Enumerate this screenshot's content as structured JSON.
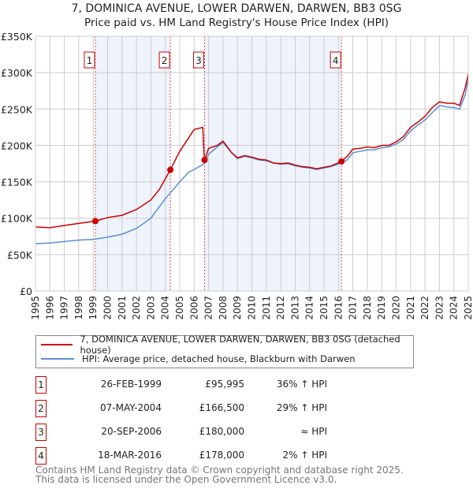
{
  "title": "7, DOMINICA AVENUE, LOWER DARWEN, DARWEN, BB3 0SG",
  "subtitle": "Price paid vs. HM Land Registry's House Price Index (HPI)",
  "chart_data": {
    "type": "line",
    "xlim": [
      1995,
      2025
    ],
    "ylim": [
      0,
      350000
    ],
    "yticks": [
      0,
      50000,
      100000,
      150000,
      200000,
      250000,
      300000,
      350000
    ],
    "ytick_labels": [
      "£0",
      "£50K",
      "£100K",
      "£150K",
      "£200K",
      "£250K",
      "£300K",
      "£350K"
    ],
    "xtick_labels": [
      "1995",
      "1996",
      "1997",
      "1998",
      "1999",
      "2000",
      "2001",
      "2002",
      "2003",
      "2004",
      "2005",
      "2006",
      "2007",
      "2008",
      "2009",
      "2010",
      "2011",
      "2012",
      "2013",
      "2014",
      "2015",
      "2016",
      "2017",
      "2018",
      "2019",
      "2020",
      "2021",
      "2022",
      "2023",
      "2024",
      "2025"
    ],
    "grid": true,
    "shaded_ranges": [
      [
        1999.15,
        2004.35
      ],
      [
        2006.72,
        2016.21
      ]
    ],
    "series": [
      {
        "name": "7, DOMINICA AVENUE, LOWER DARWEN, DARWEN, BB3 0SG (detached house)",
        "color": "#cc0000",
        "x": [
          1995,
          1996,
          1997,
          1998,
          1999.15,
          2000,
          2001,
          2002,
          2003,
          2003.6,
          2004.35,
          2005,
          2005.6,
          2006,
          2006.6,
          2006.68,
          2006.72,
          2007,
          2007.6,
          2008,
          2008.6,
          2009,
          2009.5,
          2010,
          2010.5,
          2011,
          2011.5,
          2012,
          2012.5,
          2013,
          2013.5,
          2014,
          2014.5,
          2015,
          2015.5,
          2016.21,
          2016.6,
          2017,
          2017.5,
          2018,
          2018.5,
          2019,
          2019.5,
          2020,
          2020.5,
          2021,
          2021.5,
          2022,
          2022.5,
          2023,
          2023.5,
          2024,
          2024.4,
          2024.8,
          2025
        ],
        "y": [
          88000,
          87000,
          90000,
          93000,
          95995,
          101000,
          104000,
          112000,
          125000,
          140000,
          166500,
          192000,
          210000,
          222000,
          225000,
          190000,
          180000,
          196000,
          200000,
          206000,
          190000,
          183000,
          186000,
          184000,
          181000,
          180000,
          176000,
          175000,
          176000,
          173000,
          171000,
          170000,
          168000,
          170000,
          172000,
          178000,
          185000,
          195000,
          196000,
          198000,
          197000,
          200000,
          200000,
          205000,
          212000,
          225000,
          232000,
          240000,
          252000,
          260000,
          258000,
          258000,
          255000,
          280000,
          298000
        ]
      },
      {
        "name": "HPI: Average price, detached house, Blackburn with Darwen",
        "color": "#5b8fd4",
        "x": [
          1995,
          1996,
          1997,
          1998,
          1999,
          2000,
          2001,
          2002,
          2003,
          2004,
          2005,
          2005.6,
          2006,
          2006.7,
          2007,
          2007.6,
          2008,
          2008.6,
          2009,
          2009.5,
          2010,
          2010.5,
          2011,
          2011.5,
          2012,
          2012.5,
          2013,
          2013.5,
          2014,
          2014.5,
          2015,
          2015.5,
          2016.2,
          2016.6,
          2017,
          2017.5,
          2018,
          2018.5,
          2019,
          2019.5,
          2020,
          2020.5,
          2021,
          2021.5,
          2022,
          2022.5,
          2023,
          2023.5,
          2024,
          2024.4,
          2024.8,
          2025
        ],
        "y": [
          65000,
          66000,
          68000,
          70000,
          71000,
          74000,
          78000,
          86000,
          100000,
          127000,
          150000,
          163000,
          167000,
          175000,
          188000,
          198000,
          204000,
          190000,
          182000,
          185000,
          183000,
          180000,
          179000,
          176000,
          174000,
          175000,
          172000,
          170000,
          169000,
          167000,
          169000,
          171000,
          176000,
          180000,
          190000,
          192000,
          194000,
          194000,
          197000,
          198000,
          202000,
          208000,
          220000,
          228000,
          235000,
          245000,
          255000,
          253000,
          252000,
          250000,
          270000,
          292000
        ]
      }
    ],
    "sales": [
      {
        "num": "1",
        "x": 1999.15,
        "y": 95995
      },
      {
        "num": "2",
        "x": 2004.35,
        "y": 166500
      },
      {
        "num": "3",
        "x": 2006.72,
        "y": 180000
      },
      {
        "num": "4",
        "x": 2016.21,
        "y": 178000
      }
    ]
  },
  "legend": {
    "red": "7, DOMINICA AVENUE, LOWER DARWEN, DARWEN, BB3 0SG (detached house)",
    "blue": "HPI: Average price, detached house, Blackburn with Darwen"
  },
  "transactions": [
    {
      "num": "1",
      "date": "26-FEB-1999",
      "price": "£95,995",
      "hpi": "36% ↑ HPI"
    },
    {
      "num": "2",
      "date": "07-MAY-2004",
      "price": "£166,500",
      "hpi": "29% ↑ HPI"
    },
    {
      "num": "3",
      "date": "20-SEP-2006",
      "price": "£180,000",
      "hpi": "≈ HPI"
    },
    {
      "num": "4",
      "date": "18-MAR-2016",
      "price": "£178,000",
      "hpi": "2% ↑ HPI"
    }
  ],
  "footer": {
    "line1": "Contains HM Land Registry data © Crown copyright and database right 2025.",
    "line2": "This data is licensed under the Open Government Licence v3.0."
  }
}
